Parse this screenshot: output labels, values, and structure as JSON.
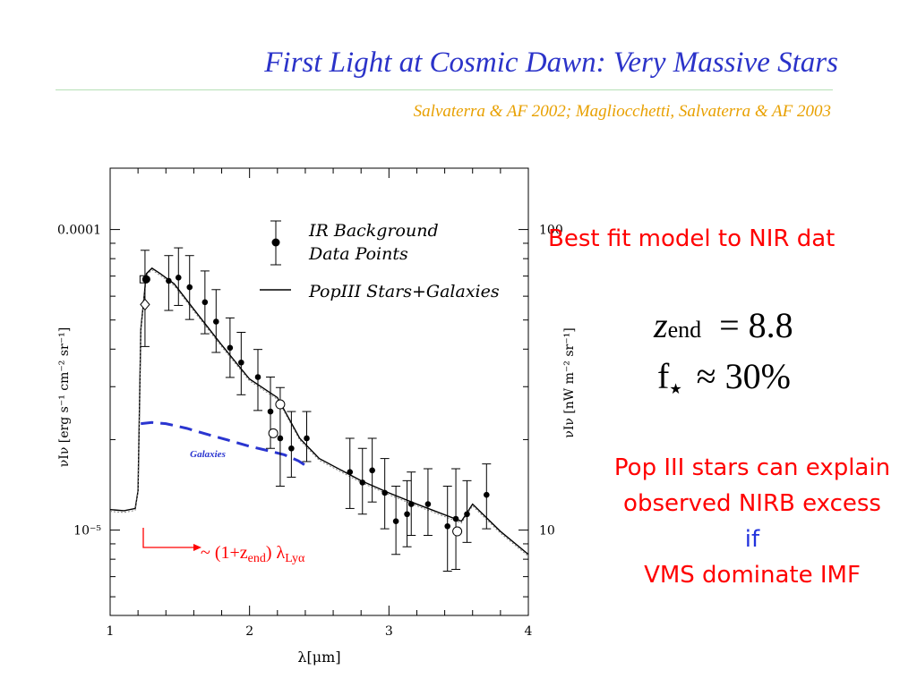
{
  "slide": {
    "title": "First Light at Cosmic Dawn: Very Massive Stars",
    "subtitle": "Salvaterra & AF 2002; Magliocchetti, Salvaterra & AF 2003"
  },
  "colors": {
    "title": "#2b33c9",
    "subtitle": "#e8a000",
    "annotation_red": "#ff0000",
    "galaxies_curve": "#2a35d0",
    "data": "#000000"
  },
  "right_panel": {
    "best_fit_note": "Best fit model to NIR dat",
    "z_symbol": "z",
    "z_subscript": "end",
    "z_value": "= 8.8",
    "f_symbol": "f",
    "f_subscript": "★",
    "f_value": "≈ 30%",
    "conclusion_lines": [
      {
        "text": "Pop III stars can explain",
        "color": "#ff0000"
      },
      {
        "text": "observed NIRB excess",
        "color": "#ff0000"
      },
      {
        "text": "if",
        "color": "#2233dd"
      },
      {
        "text": "VMS dominate IMF",
        "color": "#ff0000"
      }
    ]
  },
  "chart_data": {
    "type": "scatter",
    "xlabel": "λ[μm]",
    "ylabel_left": "νIν [erg s⁻¹ cm⁻² sr⁻¹]",
    "ylabel_right": "νIν [nW m⁻² sr⁻¹]",
    "xlim": [
      1,
      4
    ],
    "ylim": [
      5.2e-06,
      0.00016
    ],
    "yscale": "log",
    "x_ticks": [
      "1",
      "2",
      "3",
      "4"
    ],
    "y_ticks_left": [
      "0.0001",
      "10⁻⁵"
    ],
    "y_ticks_right": [
      "100",
      "10"
    ],
    "legend": {
      "position": "top-right",
      "entries": [
        "IR Background Data Points",
        "PopIII Stars+Galaxies"
      ]
    },
    "annotations": {
      "galaxies_label": "Galaxies",
      "lya_prefix": "~ (1+z",
      "lya_sub": "end",
      "lya_mid": ") λ",
      "lya_sub2": "Lyα"
    },
    "series": [
      {
        "name": "IR Background Data Points",
        "kind": "points",
        "points": [
          {
            "x": 1.25,
            "y": 6.83e-05,
            "ylo": 4.08e-05,
            "yhi": 8.53e-05
          },
          {
            "x": 1.42,
            "y": 6.75e-05,
            "ylo": 5.38e-05,
            "yhi": 8.19e-05
          },
          {
            "x": 1.49,
            "y": 6.92e-05,
            "ylo": 5.59e-05,
            "yhi": 8.69e-05
          },
          {
            "x": 1.57,
            "y": 6.43e-05,
            "ylo": 5.02e-05,
            "yhi": 8.19e-05
          },
          {
            "x": 1.68,
            "y": 5.73e-05,
            "ylo": 4.5e-05,
            "yhi": 7.28e-05
          },
          {
            "x": 1.76,
            "y": 4.94e-05,
            "ylo": 3.9e-05,
            "yhi": 6.31e-05
          },
          {
            "x": 1.86,
            "y": 4.04e-05,
            "ylo": 3.22e-05,
            "yhi": 5.08e-05
          },
          {
            "x": 1.94,
            "y": 3.61e-05,
            "ylo": 2.82e-05,
            "yhi": 4.55e-05
          },
          {
            "x": 2.06,
            "y": 3.23e-05,
            "ylo": 2.5e-05,
            "yhi": 3.99e-05
          },
          {
            "x": 2.15,
            "y": 2.48e-05,
            "ylo": 1.87e-05,
            "yhi": 3.23e-05
          },
          {
            "x": 2.22,
            "y": 2.02e-05,
            "ylo": 1.4e-05,
            "yhi": 2.98e-05
          },
          {
            "x": 2.3,
            "y": 1.87e-05,
            "ylo": 1.5e-05,
            "yhi": 2.48e-05
          },
          {
            "x": 2.41,
            "y": 2.02e-05,
            "ylo": 1.69e-05,
            "yhi": 2.48e-05
          },
          {
            "x": 2.72,
            "y": 1.56e-05,
            "ylo": 1.18e-05,
            "yhi": 2.02e-05
          },
          {
            "x": 2.81,
            "y": 1.44e-05,
            "ylo": 1.13e-05,
            "yhi": 1.87e-05
          },
          {
            "x": 2.88,
            "y": 1.58e-05,
            "ylo": 1.24e-05,
            "yhi": 2.02e-05
          },
          {
            "x": 2.97,
            "y": 1.33e-05,
            "ylo": 1.01e-05,
            "yhi": 1.73e-05
          },
          {
            "x": 3.05,
            "y": 1.07e-05,
            "ylo": 8.3e-06,
            "yhi": 1.4e-05
          },
          {
            "x": 3.13,
            "y": 1.13e-05,
            "ylo": 8.8e-06,
            "yhi": 1.46e-05
          },
          {
            "x": 3.16,
            "y": 1.22e-05,
            "ylo": 9.6e-06,
            "yhi": 1.56e-05
          },
          {
            "x": 3.28,
            "y": 1.22e-05,
            "ylo": 9.6e-06,
            "yhi": 1.6e-05
          },
          {
            "x": 3.42,
            "y": 1.03e-05,
            "ylo": 7.3e-06,
            "yhi": 1.4e-05
          },
          {
            "x": 3.48,
            "y": 1.09e-05,
            "ylo": 7.4e-06,
            "yhi": 1.6e-05
          },
          {
            "x": 3.56,
            "y": 1.13e-05,
            "ylo": 9.1e-06,
            "yhi": 1.46e-05
          },
          {
            "x": 3.7,
            "y": 1.31e-05,
            "ylo": 1.01e-05,
            "yhi": 1.66e-05
          }
        ]
      },
      {
        "name": "Open circles",
        "kind": "open_points",
        "points": [
          {
            "x": 2.22,
            "y": 2.62e-05
          },
          {
            "x": 2.17,
            "y": 2.1e-05
          },
          {
            "x": 3.49,
            "y": 9.9e-06
          }
        ]
      },
      {
        "name": "Open diamond",
        "kind": "diamond",
        "points": [
          {
            "x": 1.25,
            "y": 5.63e-05
          }
        ]
      },
      {
        "name": "Open square",
        "kind": "square",
        "points": [
          {
            "x": 1.24,
            "y": 6.83e-05
          }
        ]
      },
      {
        "name": "PopIII Stars+Galaxies",
        "kind": "line",
        "points": [
          {
            "x": 1.0,
            "y": 1.17e-05
          },
          {
            "x": 1.1,
            "y": 1.16e-05
          },
          {
            "x": 1.18,
            "y": 1.18e-05
          },
          {
            "x": 1.2,
            "y": 1.35e-05
          },
          {
            "x": 1.22,
            "y": 4.65e-05
          },
          {
            "x": 1.26,
            "y": 7.13e-05
          },
          {
            "x": 1.3,
            "y": 7.44e-05
          },
          {
            "x": 1.36,
            "y": 7.13e-05
          },
          {
            "x": 1.46,
            "y": 6.59e-05
          },
          {
            "x": 1.6,
            "y": 5.43e-05
          },
          {
            "x": 1.8,
            "y": 4.13e-05
          },
          {
            "x": 2.0,
            "y": 3.18e-05
          },
          {
            "x": 2.2,
            "y": 2.76e-05
          },
          {
            "x": 2.36,
            "y": 2.02e-05
          },
          {
            "x": 2.5,
            "y": 1.73e-05
          },
          {
            "x": 2.8,
            "y": 1.46e-05
          },
          {
            "x": 3.0,
            "y": 1.33e-05
          },
          {
            "x": 3.2,
            "y": 1.22e-05
          },
          {
            "x": 3.52,
            "y": 1.07e-05
          },
          {
            "x": 3.6,
            "y": 1.22e-05
          },
          {
            "x": 3.8,
            "y": 9.9e-06
          },
          {
            "x": 4.0,
            "y": 8.3e-06
          }
        ]
      },
      {
        "name": "Galaxies",
        "kind": "dashed",
        "points": [
          {
            "x": 1.22,
            "y": 2.26e-05
          },
          {
            "x": 1.3,
            "y": 2.28e-05
          },
          {
            "x": 1.4,
            "y": 2.26e-05
          },
          {
            "x": 1.55,
            "y": 2.18e-05
          },
          {
            "x": 1.7,
            "y": 2.08e-05
          },
          {
            "x": 1.85,
            "y": 1.99e-05
          },
          {
            "x": 2.0,
            "y": 1.9e-05
          },
          {
            "x": 2.15,
            "y": 1.83e-05
          },
          {
            "x": 2.25,
            "y": 1.78e-05
          },
          {
            "x": 2.35,
            "y": 1.7e-05
          },
          {
            "x": 2.42,
            "y": 1.62e-05
          }
        ]
      }
    ]
  }
}
